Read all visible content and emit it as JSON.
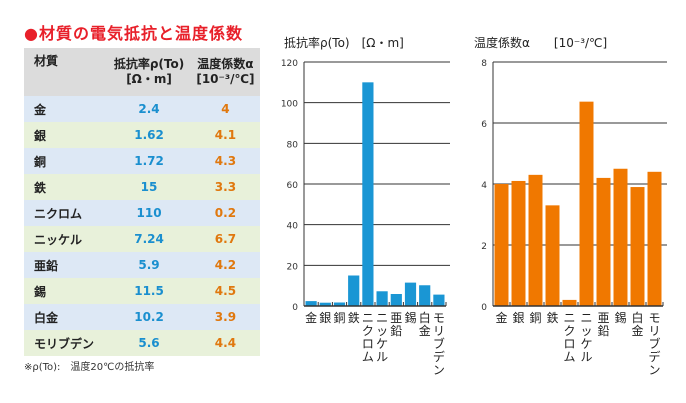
{
  "title": "●材質の電気抵抗と温度係数",
  "table": {
    "headers": {
      "material": "材質",
      "resistivity": "抵抗率ρ(To)",
      "resistivity_unit": "[Ω・m]",
      "coef": "温度係数α",
      "coef_unit": "[10⁻³/℃]"
    },
    "rows": [
      {
        "material": "金",
        "resistivity": "2.4",
        "coef": "4"
      },
      {
        "material": "銀",
        "resistivity": "1.62",
        "coef": "4.1"
      },
      {
        "material": "銅",
        "resistivity": "1.72",
        "coef": "4.3"
      },
      {
        "material": "鉄",
        "resistivity": "15",
        "coef": "3.3"
      },
      {
        "material": "ニクロム",
        "resistivity": "110",
        "coef": "0.2"
      },
      {
        "material": "ニッケル",
        "resistivity": "7.24",
        "coef": "6.7"
      },
      {
        "material": "亜鉛",
        "resistivity": "5.9",
        "coef": "4.2"
      },
      {
        "material": "錫",
        "resistivity": "11.5",
        "coef": "4.5"
      },
      {
        "material": "白金",
        "resistivity": "10.2",
        "coef": "3.9"
      },
      {
        "material": "モリブデン",
        "resistivity": "5.6",
        "coef": "4.4"
      }
    ]
  },
  "note": "※ρ(To):　温度20℃の抵抗率",
  "chart_data": [
    {
      "type": "bar",
      "title": "抵抗率ρ(To)　[Ω・m]",
      "categories": [
        "金",
        "銀",
        "銅",
        "鉄",
        "ニクロム",
        "ニッケル",
        "亜鉛",
        "錫",
        "白金",
        "モリブデン"
      ],
      "values": [
        2.4,
        1.62,
        1.72,
        15,
        110,
        7.24,
        5.9,
        11.5,
        10.2,
        5.6
      ],
      "ylim": [
        0,
        120
      ],
      "yticks": [
        0,
        20,
        40,
        60,
        80,
        100,
        120
      ],
      "grid": true,
      "color": "#1a96d4"
    },
    {
      "type": "bar",
      "title": "温度係数α　　[10⁻³/℃]",
      "categories": [
        "金",
        "銀",
        "銅",
        "鉄",
        "ニクロム",
        "ニッケル",
        "亜鉛",
        "錫",
        "白金",
        "モリブデン"
      ],
      "values": [
        4,
        4.1,
        4.3,
        3.3,
        0.2,
        6.7,
        4.2,
        4.5,
        3.9,
        4.4
      ],
      "ylim": [
        0,
        8
      ],
      "yticks": [
        0,
        2,
        4,
        6,
        8
      ],
      "grid": true,
      "color": "#f07800"
    }
  ]
}
